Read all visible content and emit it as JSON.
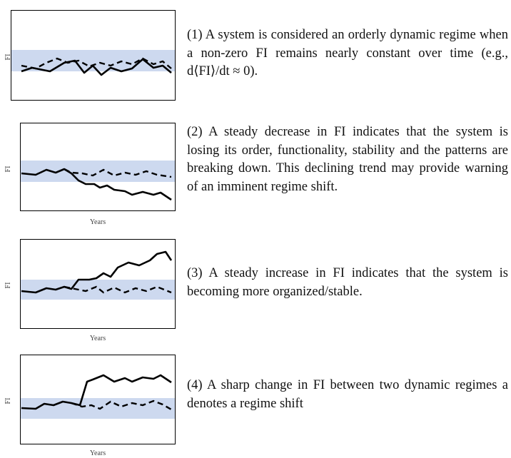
{
  "panels": [
    {
      "y_label": "FI",
      "text": "(1)  A system is considered an orderly dynamic regime when a non-zero FI remains nearly constant over time (e.g., d⟨FI⟩/dt ≈ 0)."
    },
    {
      "y_label": "FI",
      "x_label": "Years",
      "text": "(2)  A steady decrease in FI indicates that the system is losing its order, functionality, stability and the patterns are breaking down. This declining trend may provide warning of an imminent regime shift."
    },
    {
      "y_label": "FI",
      "x_label": "Years",
      "text": "(3)  A steady increase in FI indicates that the system is becoming more organized/stable."
    },
    {
      "y_label": "FI",
      "x_label": "Years",
      "text": "(4)  A sharp change in FI between two dynamic regimes a denotes a regime shift"
    }
  ]
}
